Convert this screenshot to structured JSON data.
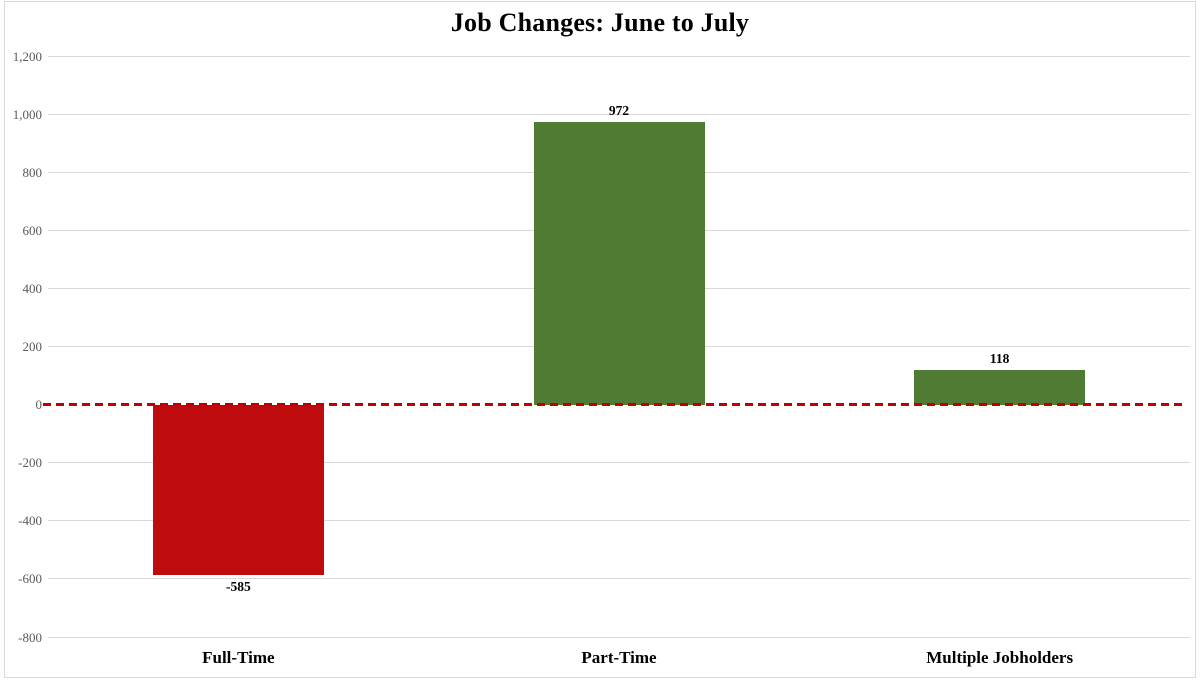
{
  "chart_data": {
    "type": "bar",
    "title": "Job Changes: June to July",
    "categories": [
      "Full-Time",
      "Part-Time",
      "Multiple Jobholders"
    ],
    "values": [
      -585,
      972,
      118
    ],
    "data_labels": [
      "-585",
      "972",
      "118"
    ],
    "bar_colors": [
      "#c00b0e",
      "#4f7b32",
      "#4f7b32"
    ],
    "xlabel": "",
    "ylabel": "",
    "ylim": [
      -800,
      1200
    ],
    "ytick_step": 200,
    "ytick_labels": [
      "1,200",
      "1,000",
      "800",
      "600",
      "400",
      "200",
      "0",
      "-200",
      "-400",
      "-600",
      "-800"
    ],
    "grid": true,
    "legend": "none",
    "zero_line": {
      "style": "dashed",
      "color": "#c00000"
    },
    "colors": {
      "positive_bar": "#4f7b32",
      "negative_bar": "#c00b0e",
      "gridline": "#d9d9d9",
      "axis_label_text": "#595959",
      "title_text": "#000000",
      "frame_border": "#d9d9d9",
      "background": "#ffffff"
    }
  }
}
